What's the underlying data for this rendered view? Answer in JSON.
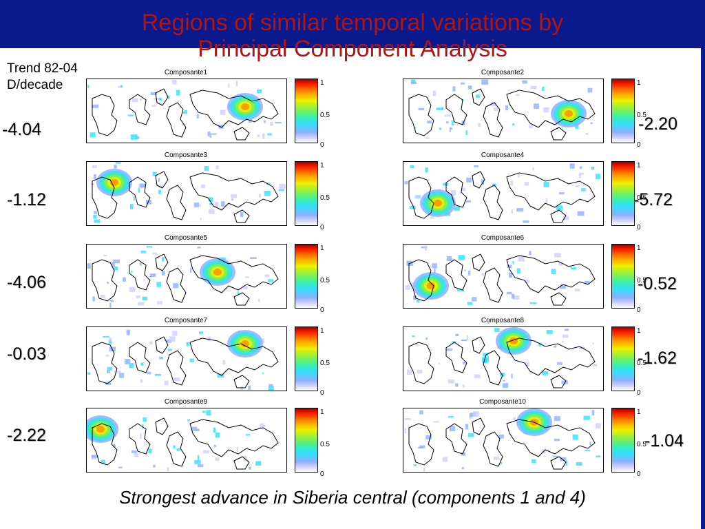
{
  "title": {
    "line1": "Regions of similar temporal variations by",
    "line2": "Principal Component Analysis"
  },
  "trend_header": {
    "line1": "Trend 82-04",
    "line2": "D/decade"
  },
  "colorbar_ticks": {
    "top": "1",
    "mid": "0.5",
    "bottom": "0"
  },
  "panels": [
    {
      "label": "Composante1",
      "trend": "-4.04"
    },
    {
      "label": "Composante2",
      "trend": "-2.20"
    },
    {
      "label": "Composante3",
      "trend": "-1.12"
    },
    {
      "label": "Composante4",
      "trend": "-5.72"
    },
    {
      "label": "Composante5",
      "trend": "-4.06"
    },
    {
      "label": "Composante6",
      "trend": "-0.52"
    },
    {
      "label": "Composante7",
      "trend": "-0.03"
    },
    {
      "label": "Composante8",
      "trend": "-1.62"
    },
    {
      "label": "Composante9",
      "trend": "-2.22"
    },
    {
      "label": "Composante10",
      "trend": "-1.04"
    }
  ],
  "footer": "Strongest advance in Siberia central (components 1 and 4)",
  "colors": {
    "background": "#0a1a8c",
    "title": "#b01515"
  }
}
